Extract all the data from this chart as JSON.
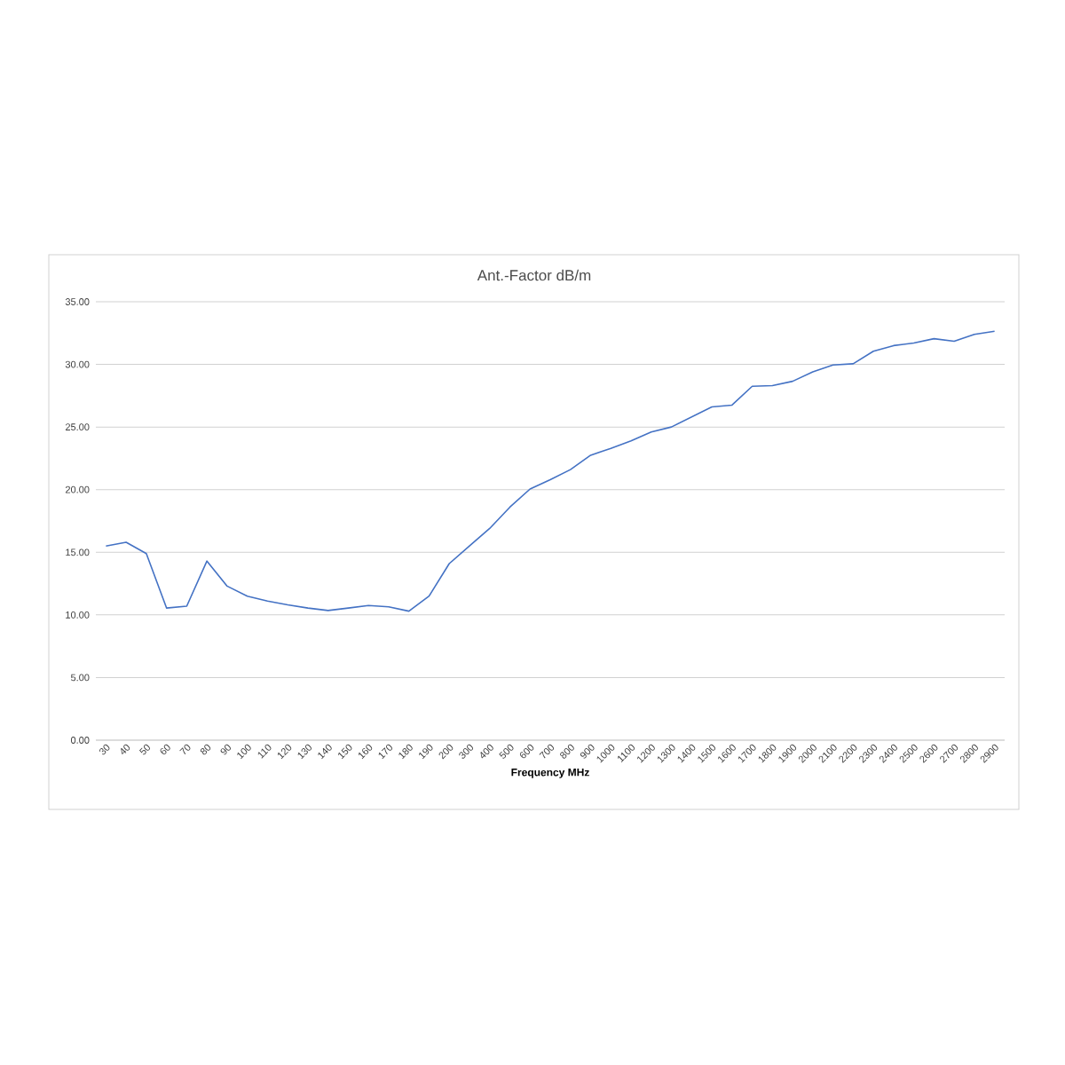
{
  "chart_data": {
    "type": "line",
    "title": "Ant.-Factor dB/m",
    "xlabel": "Frequency MHz",
    "categories": [
      "30",
      "40",
      "50",
      "60",
      "70",
      "80",
      "90",
      "100",
      "110",
      "120",
      "130",
      "140",
      "150",
      "160",
      "170",
      "180",
      "190",
      "200",
      "300",
      "400",
      "500",
      "600",
      "700",
      "800",
      "900",
      "1000",
      "1100",
      "1200",
      "1300",
      "1400",
      "1500",
      "1600",
      "1700",
      "1800",
      "1900",
      "2000",
      "2100",
      "2200",
      "2300",
      "2400",
      "2500",
      "2600",
      "2700",
      "2800",
      "2900"
    ],
    "series": [
      {
        "color": "#4472c4",
        "values": [
          15.5,
          15.8,
          14.9,
          10.55,
          10.7,
          14.3,
          12.3,
          11.5,
          11.1,
          10.8,
          10.55,
          10.35,
          10.55,
          10.75,
          10.65,
          10.3,
          11.5,
          14.1,
          15.5,
          16.9,
          18.6,
          20.05,
          20.8,
          21.6,
          22.75,
          23.3,
          23.9,
          24.6,
          25.0,
          25.8,
          26.6,
          26.75,
          28.25,
          28.3,
          28.65,
          29.4,
          29.95,
          30.05,
          31.05,
          31.5,
          31.7,
          32.05,
          31.85,
          32.4,
          32.65
        ]
      }
    ],
    "ylim": [
      0,
      35
    ],
    "yticks": [
      {
        "value": 0,
        "label": "0.00"
      },
      {
        "value": 5,
        "label": "5.00"
      },
      {
        "value": 10,
        "label": "10.00"
      },
      {
        "value": 15,
        "label": "15.00"
      },
      {
        "value": 20,
        "label": "20.00"
      },
      {
        "value": 25,
        "label": "25.00"
      },
      {
        "value": 30,
        "label": "30.00"
      },
      {
        "value": 35,
        "label": "35.00"
      }
    ],
    "grid": "y",
    "marker": "none",
    "line_style": "solid"
  }
}
